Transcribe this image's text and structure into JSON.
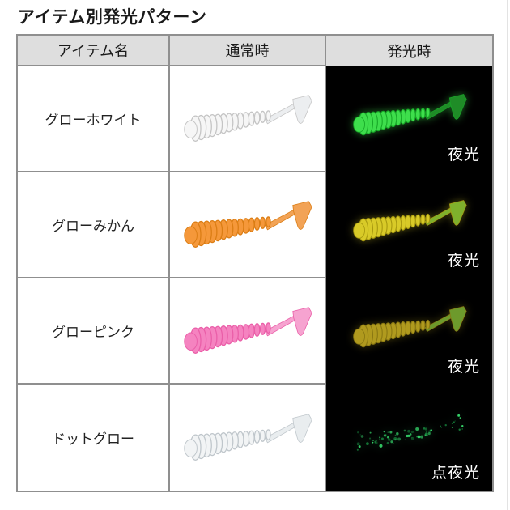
{
  "title": "アイテム別発光パターン",
  "table": {
    "headers": [
      "アイテム名",
      "通常時",
      "発光時"
    ],
    "rows": [
      {
        "name": "グローホワイト",
        "glow_label": "夜光",
        "normal_lure": {
          "style": "solid",
          "body": "#f6f6f6",
          "rib": "#c4c4c4",
          "tail": "#eceef0"
        },
        "glow_lure": {
          "style": "solid",
          "body": "#3ede4c",
          "rib": "#18a928",
          "tail": "#1f8c27",
          "glow": "rgba(62,222,76,0.5)"
        }
      },
      {
        "name": "グローみかん",
        "glow_label": "夜光",
        "normal_lure": {
          "style": "solid",
          "body": "#f5983a",
          "rib": "#db7d14",
          "tail": "#f2a356"
        },
        "glow_lure": {
          "style": "solid",
          "body": "#d8ca28",
          "rib": "#a89a10",
          "tail": "#7fb02c",
          "glow": "rgba(214,202,40,0.4)"
        }
      },
      {
        "name": "グローピンク",
        "glow_label": "夜光",
        "normal_lure": {
          "style": "solid",
          "body": "#f583c0",
          "rib": "#ea5ea8",
          "tail": "#f6a3d0"
        },
        "glow_lure": {
          "style": "solid",
          "body": "#b09a1e",
          "rib": "#8a7812",
          "tail": "#6d9a2c",
          "glow": "rgba(176,154,30,0.35)"
        }
      },
      {
        "name": "ドットグロー",
        "glow_label": "点夜光",
        "normal_lure": {
          "style": "solid",
          "body": "#f2f4f5",
          "rib": "#bfc6cb",
          "tail": "#e9edef"
        },
        "glow_lure": {
          "style": "dots",
          "body": "#35d168",
          "rib": "#157a38",
          "glow": "rgba(60,220,120,0.35)"
        }
      }
    ]
  },
  "colors": {
    "page_bg": "#ffffff",
    "header_bg": "#dedede",
    "table_border": "#8f8f8f",
    "glow_cell_bg": "#000000",
    "title_color": "#1a1a1a",
    "glow_label_color": "#ffffff"
  }
}
